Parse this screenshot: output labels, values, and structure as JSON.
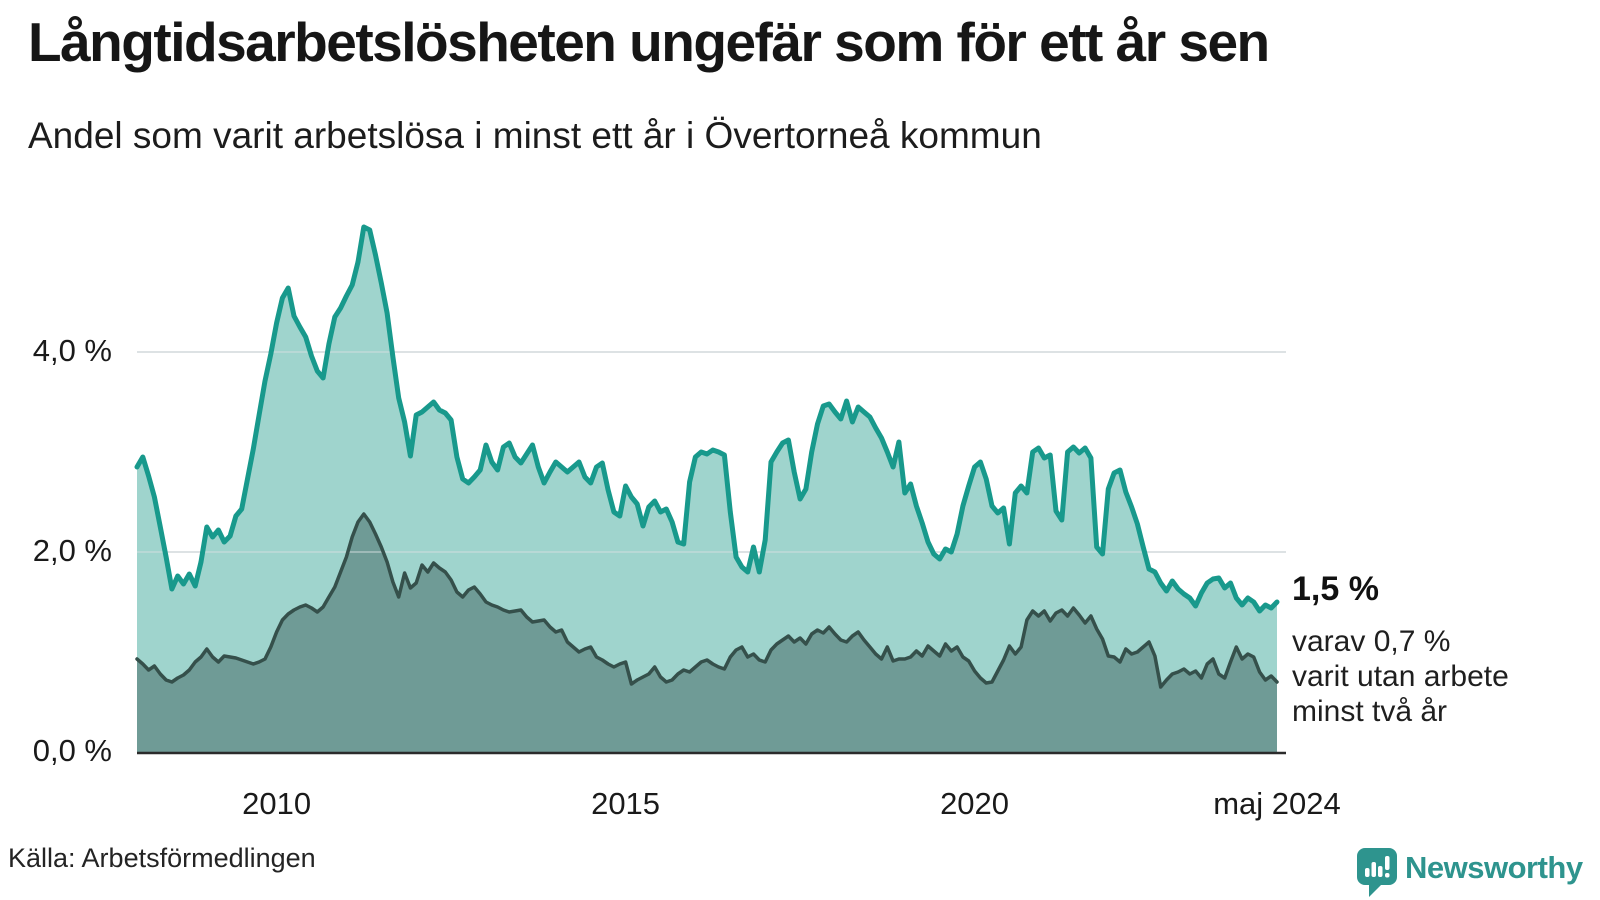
{
  "header": {
    "title": "Långtidsarbetslösheten ungefär som för ett år sen",
    "subtitle": "Andel som varit arbetslösa i minst ett år i Övertorneå kommun"
  },
  "annotation": {
    "value_label": "1,5 %",
    "details": [
      "varav 0,7 %",
      "varit utan arbete",
      "minst två år"
    ]
  },
  "footer": {
    "source": "Källa: Arbetsförmedlingen",
    "brand": "Newsworthy",
    "logo_icon": "speech-bubble-bar-chart-icon"
  },
  "colors": {
    "line_1yr": "#18998c",
    "fill_1yr": "#9fd4cd",
    "line_2yr": "#35504b",
    "fill_2yr": "#6f9b96",
    "gridline": "#e2e3e6",
    "axis": "#2b2b2b",
    "logo": "#2e948e"
  },
  "chart_data": {
    "type": "area",
    "title": "Långtidsarbetslösheten ungefär som för ett år sen",
    "subtitle": "Andel som varit arbetslösa i minst ett år i Övertorneå kommun",
    "unit": "%",
    "x_start": "2008-01",
    "x_end": "2024-05",
    "x_interval": "monthly",
    "ylim": [
      0,
      5.6
    ],
    "grid": "horizontal",
    "legend_position": "none",
    "y_ticks": [
      {
        "label": "0,0 %",
        "value": 0
      },
      {
        "label": "2,0 %",
        "value": 2
      },
      {
        "label": "4,0 %",
        "value": 4
      }
    ],
    "x_ticks": [
      {
        "label": "2010",
        "month_index": 24
      },
      {
        "label": "2015",
        "month_index": 84
      },
      {
        "label": "2020",
        "month_index": 144
      },
      {
        "label": "maj 2024",
        "month_index": 196
      }
    ],
    "series": [
      {
        "name": "Andel arbetslösa minst ett år",
        "last_value_label": "1,5 %",
        "values": [
          2.85,
          2.95,
          2.76,
          2.55,
          2.25,
          1.95,
          1.63,
          1.76,
          1.68,
          1.78,
          1.66,
          1.9,
          2.25,
          2.15,
          2.22,
          2.1,
          2.16,
          2.36,
          2.43,
          2.73,
          3.03,
          3.37,
          3.71,
          3.98,
          4.29,
          4.54,
          4.64,
          4.36,
          4.25,
          4.15,
          3.96,
          3.81,
          3.74,
          4.08,
          4.35,
          4.44,
          4.56,
          4.67,
          4.9,
          5.25,
          5.22,
          4.97,
          4.69,
          4.39,
          3.95,
          3.54,
          3.3,
          2.96,
          3.37,
          3.4,
          3.45,
          3.5,
          3.42,
          3.39,
          3.32,
          2.95,
          2.73,
          2.69,
          2.75,
          2.82,
          3.07,
          2.9,
          2.82,
          3.05,
          3.09,
          2.95,
          2.89,
          2.98,
          3.07,
          2.85,
          2.69,
          2.8,
          2.9,
          2.85,
          2.8,
          2.85,
          2.9,
          2.75,
          2.69,
          2.85,
          2.89,
          2.62,
          2.4,
          2.36,
          2.66,
          2.55,
          2.48,
          2.26,
          2.45,
          2.51,
          2.4,
          2.43,
          2.3,
          2.1,
          2.08,
          2.7,
          2.95,
          3.0,
          2.98,
          3.02,
          3.0,
          2.97,
          2.4,
          1.95,
          1.85,
          1.8,
          2.05,
          1.8,
          2.12,
          2.9,
          3.0,
          3.09,
          3.12,
          2.8,
          2.53,
          2.63,
          3.0,
          3.28,
          3.46,
          3.48,
          3.4,
          3.33,
          3.51,
          3.3,
          3.45,
          3.4,
          3.35,
          3.24,
          3.14,
          3.0,
          2.85,
          3.1,
          2.59,
          2.68,
          2.46,
          2.29,
          2.1,
          1.98,
          1.93,
          2.03,
          2.0,
          2.18,
          2.46,
          2.66,
          2.85,
          2.9,
          2.73,
          2.46,
          2.39,
          2.44,
          2.08,
          2.59,
          2.66,
          2.59,
          3.0,
          3.04,
          2.94,
          2.97,
          2.41,
          2.32,
          3.0,
          3.05,
          2.99,
          3.04,
          2.94,
          2.05,
          1.98,
          2.63,
          2.79,
          2.82,
          2.6,
          2.45,
          2.28,
          2.05,
          1.83,
          1.8,
          1.69,
          1.61,
          1.71,
          1.63,
          1.58,
          1.54,
          1.46,
          1.59,
          1.69,
          1.73,
          1.74,
          1.64,
          1.69,
          1.54,
          1.47,
          1.54,
          1.5,
          1.41,
          1.47,
          1.44,
          1.5
        ]
      },
      {
        "name": "Andel arbetslösa minst två år",
        "last_value_label": "0,7 %",
        "values": [
          0.93,
          0.88,
          0.82,
          0.86,
          0.78,
          0.72,
          0.7,
          0.74,
          0.77,
          0.82,
          0.9,
          0.95,
          1.03,
          0.95,
          0.9,
          0.96,
          0.95,
          0.94,
          0.92,
          0.9,
          0.88,
          0.9,
          0.93,
          1.05,
          1.2,
          1.32,
          1.38,
          1.42,
          1.45,
          1.47,
          1.44,
          1.4,
          1.45,
          1.55,
          1.65,
          1.8,
          1.95,
          2.15,
          2.3,
          2.38,
          2.3,
          2.18,
          2.05,
          1.9,
          1.7,
          1.55,
          1.79,
          1.64,
          1.69,
          1.87,
          1.8,
          1.89,
          1.84,
          1.8,
          1.72,
          1.6,
          1.55,
          1.62,
          1.65,
          1.58,
          1.5,
          1.47,
          1.45,
          1.42,
          1.4,
          1.41,
          1.42,
          1.35,
          1.3,
          1.31,
          1.32,
          1.25,
          1.2,
          1.22,
          1.1,
          1.05,
          1.0,
          1.03,
          1.05,
          0.95,
          0.92,
          0.88,
          0.85,
          0.88,
          0.9,
          0.68,
          0.72,
          0.75,
          0.78,
          0.85,
          0.75,
          0.7,
          0.72,
          0.78,
          0.82,
          0.8,
          0.85,
          0.9,
          0.92,
          0.88,
          0.85,
          0.83,
          0.95,
          1.02,
          1.05,
          0.95,
          0.98,
          0.92,
          0.9,
          1.02,
          1.08,
          1.12,
          1.16,
          1.1,
          1.14,
          1.08,
          1.18,
          1.22,
          1.19,
          1.25,
          1.18,
          1.12,
          1.1,
          1.16,
          1.2,
          1.12,
          1.05,
          0.98,
          0.93,
          1.05,
          0.91,
          0.93,
          0.93,
          0.95,
          1.01,
          0.96,
          1.06,
          1.01,
          0.96,
          1.08,
          1.01,
          1.05,
          0.95,
          0.91,
          0.81,
          0.74,
          0.69,
          0.7,
          0.81,
          0.92,
          1.06,
          0.98,
          1.05,
          1.32,
          1.41,
          1.36,
          1.41,
          1.31,
          1.39,
          1.42,
          1.36,
          1.44,
          1.37,
          1.29,
          1.36,
          1.23,
          1.13,
          0.96,
          0.95,
          0.9,
          1.03,
          0.98,
          1.0,
          1.05,
          1.1,
          0.96,
          0.65,
          0.72,
          0.78,
          0.8,
          0.83,
          0.78,
          0.81,
          0.74,
          0.88,
          0.93,
          0.78,
          0.74,
          0.9,
          1.05,
          0.93,
          0.98,
          0.95,
          0.8,
          0.72,
          0.76,
          0.7
        ]
      }
    ]
  }
}
